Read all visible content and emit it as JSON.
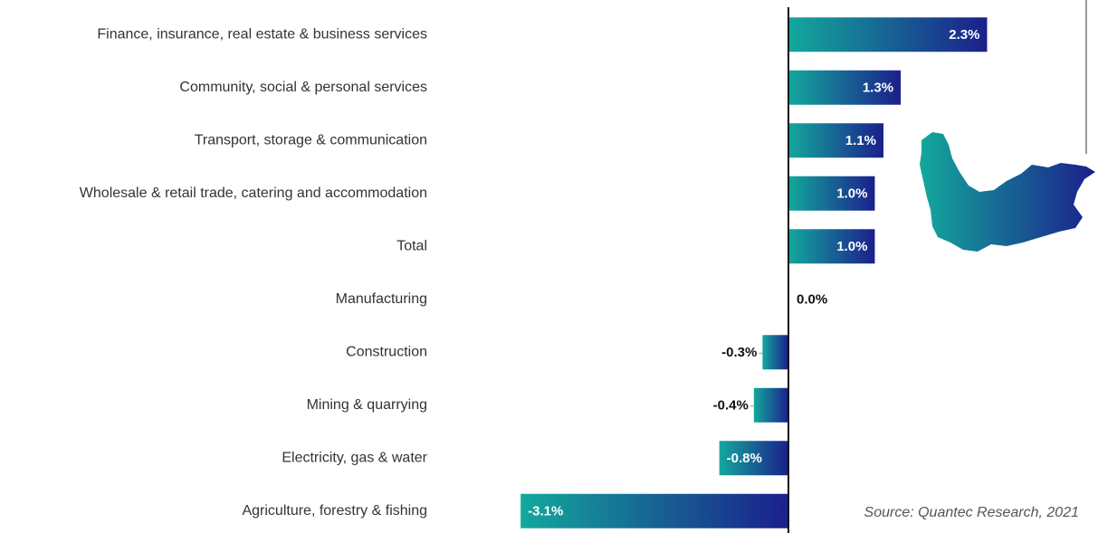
{
  "chart_data": {
    "type": "bar",
    "orientation": "horizontal",
    "categories": [
      "Finance, insurance, real estate & business services",
      "Community, social & personal services",
      "Transport, storage & communication",
      "Wholesale & retail trade, catering and accommodation",
      "Total",
      "Manufacturing",
      "Construction",
      "Mining & quarrying",
      "Electricity, gas & water",
      "Agriculture, forestry & fishing"
    ],
    "values": [
      2.3,
      1.3,
      1.1,
      1.0,
      1.0,
      0.0,
      -0.3,
      -0.4,
      -0.8,
      -3.1
    ],
    "value_labels": [
      "2.3%",
      "1.3%",
      "1.1%",
      "1.0%",
      "1.0%",
      "0.0%",
      "-0.3%",
      "-0.4%",
      "-0.8%",
      "-3.1%"
    ],
    "xlim": [
      -3.5,
      3.5
    ],
    "gradient": [
      "#13a89c",
      "#1b1f8c"
    ],
    "source": "Source: Quantec Research, 2021"
  }
}
